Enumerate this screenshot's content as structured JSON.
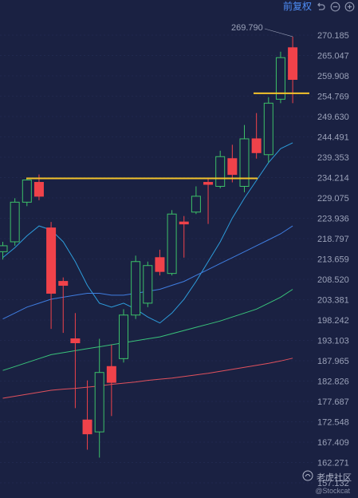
{
  "topbar": {
    "adjust_label": "前复权",
    "icons": [
      "undo-icon",
      "zoom-out-icon",
      "zoom-in-icon"
    ]
  },
  "watermark": {
    "brand": "老虎社区",
    "sub": "@Stockcat"
  },
  "colors": {
    "background": "#1a2142",
    "up": "#3cc068",
    "down": "#f0424a",
    "hline": "#f3c22b",
    "ma_blue_light": "#2d9cdb",
    "ma_blue": "#3f7de0",
    "ma_green": "#39c27a",
    "ma_red": "#e0515d",
    "grid": "#27315a",
    "axis_text": "#9aa1b8",
    "accent": "#4f8ef7"
  },
  "chart_data": {
    "type": "candlestick",
    "peak_label": "269.790",
    "y_ticks": [
      "270.185",
      "265.047",
      "259.908",
      "254.769",
      "249.630",
      "244.491",
      "239.353",
      "234.214",
      "229.075",
      "223.936",
      "218.797",
      "213.659",
      "208.520",
      "203.381",
      "198.242",
      "193.103",
      "187.965",
      "182.826",
      "177.687",
      "172.548",
      "167.409",
      "162.271",
      "157.132"
    ],
    "ylim": [
      157.132,
      270.185
    ],
    "candles": [
      {
        "o": 215.5,
        "h": 218.0,
        "l": 213.5,
        "c": 217.0
      },
      {
        "o": 218.0,
        "h": 229.0,
        "l": 217.0,
        "c": 228.0
      },
      {
        "o": 228.0,
        "h": 234.0,
        "l": 227.0,
        "c": 233.6
      },
      {
        "o": 233.0,
        "h": 235.0,
        "l": 228.5,
        "c": 229.5
      },
      {
        "o": 221.5,
        "h": 223.0,
        "l": 196.0,
        "c": 205.0
      },
      {
        "o": 208.0,
        "h": 209.0,
        "l": 195.0,
        "c": 207.0
      },
      {
        "o": 193.5,
        "h": 200.0,
        "l": 176.0,
        "c": 192.5
      },
      {
        "o": 173.0,
        "h": 183.0,
        "l": 165.5,
        "c": 169.5
      },
      {
        "o": 170.0,
        "h": 193.5,
        "l": 163.5,
        "c": 185.0
      },
      {
        "o": 186.5,
        "h": 192.0,
        "l": 174.0,
        "c": 182.5
      },
      {
        "o": 188.5,
        "h": 201.0,
        "l": 187.5,
        "c": 199.5
      },
      {
        "o": 199.5,
        "h": 214.5,
        "l": 198.5,
        "c": 213.0
      },
      {
        "o": 202.5,
        "h": 213.0,
        "l": 201.5,
        "c": 212.0
      },
      {
        "o": 214.0,
        "h": 216.0,
        "l": 209.5,
        "c": 210.5
      },
      {
        "o": 210.0,
        "h": 226.0,
        "l": 209.5,
        "c": 225.0
      },
      {
        "o": 223.0,
        "h": 224.5,
        "l": 214.0,
        "c": 222.5
      },
      {
        "o": 225.5,
        "h": 232.0,
        "l": 225.0,
        "c": 229.5
      },
      {
        "o": 233.0,
        "h": 234.0,
        "l": 222.5,
        "c": 232.5
      },
      {
        "o": 232.0,
        "h": 241.0,
        "l": 231.5,
        "c": 239.5
      },
      {
        "o": 239.0,
        "h": 242.5,
        "l": 233.0,
        "c": 235.0
      },
      {
        "o": 232.0,
        "h": 247.5,
        "l": 230.5,
        "c": 244.0
      },
      {
        "o": 244.0,
        "h": 250.5,
        "l": 239.0,
        "c": 240.5
      },
      {
        "o": 240.0,
        "h": 254.5,
        "l": 238.0,
        "c": 253.0
      },
      {
        "o": 254.0,
        "h": 266.0,
        "l": 253.0,
        "c": 264.5
      },
      {
        "o": 267.0,
        "h": 269.8,
        "l": 253.0,
        "c": 259.0
      }
    ],
    "hlines": [
      234.0,
      255.5
    ],
    "ma_lines": [
      {
        "color_key": "ma_blue_light",
        "values": [
          214,
          216.5,
          219.5,
          222,
          221,
          218,
          213,
          207,
          202.5,
          201.5,
          202.5,
          201.0,
          199.0,
          197.5,
          200.0,
          203.5,
          208.0,
          213.0,
          218.0,
          224.0,
          229.0,
          233.5,
          238.0,
          241.5,
          243.0
        ]
      },
      {
        "color_key": "ma_blue",
        "values": [
          198.5,
          200.0,
          201.5,
          202.5,
          203.5,
          204.0,
          204.5,
          205.0,
          205.0,
          204.5,
          204.5,
          205.0,
          205.5,
          206.0,
          207.0,
          208.0,
          209.5,
          211.0,
          212.5,
          214.0,
          215.5,
          217.0,
          218.5,
          220.0,
          222.0
        ]
      },
      {
        "color_key": "ma_green",
        "values": [
          185.5,
          186.5,
          187.5,
          188.5,
          189.5,
          190.0,
          190.5,
          191.0,
          191.5,
          192.0,
          192.5,
          193.0,
          193.5,
          194.0,
          194.8,
          195.6,
          196.4,
          197.2,
          198.0,
          199.0,
          200.0,
          201.0,
          202.5,
          204.0,
          206.0
        ]
      },
      {
        "color_key": "ma_red",
        "values": [
          178.5,
          179.0,
          179.5,
          180.0,
          180.5,
          180.8,
          181.0,
          181.3,
          181.6,
          182.0,
          182.3,
          182.6,
          183.0,
          183.3,
          183.6,
          184.0,
          184.4,
          184.8,
          185.3,
          185.8,
          186.3,
          186.8,
          187.3,
          187.9,
          188.6
        ]
      }
    ]
  }
}
